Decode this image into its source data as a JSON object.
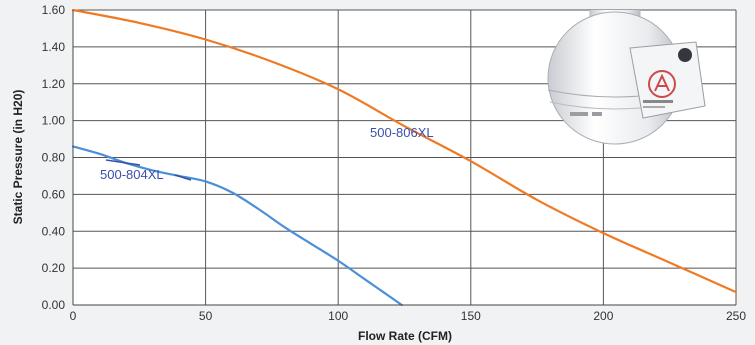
{
  "chart_data": {
    "type": "line",
    "xlabel": "Flow Rate (CFM)",
    "ylabel": "Static Pressure (in H20)",
    "xlim": [
      0,
      250
    ],
    "ylim": [
      0,
      1.6
    ],
    "xticks": [
      0,
      50,
      100,
      150,
      200,
      250
    ],
    "xtick_labels": [
      "0",
      "50",
      "100",
      "150",
      "200",
      "250"
    ],
    "yticks": [
      0,
      0.2,
      0.4,
      0.6,
      0.8,
      1.0,
      1.2,
      1.4,
      1.6
    ],
    "ytick_labels": [
      "0.00",
      "0.20",
      "0.40",
      "0.60",
      "0.80",
      "1.00",
      "1.20",
      "1.40",
      "1.60"
    ],
    "grid": true,
    "series": [
      {
        "name": "500-806XL",
        "color": "#ee7a24",
        "x": [
          0,
          25,
          50,
          75,
          100,
          125,
          150,
          175,
          200,
          225,
          250
        ],
        "y": [
          1.6,
          1.53,
          1.44,
          1.32,
          1.17,
          0.97,
          0.78,
          0.57,
          0.39,
          0.23,
          0.07
        ]
      },
      {
        "name": "500-804XL",
        "color": "#4b8fd8",
        "x": [
          0,
          10,
          20,
          30,
          40,
          50,
          60,
          70,
          80,
          90,
          100,
          110,
          120,
          124
        ],
        "y": [
          0.86,
          0.82,
          0.77,
          0.73,
          0.7,
          0.67,
          0.61,
          0.52,
          0.42,
          0.33,
          0.24,
          0.14,
          0.04,
          0.0
        ]
      }
    ]
  },
  "colors": {
    "plot_background": "#ffffff",
    "grid": "#555555",
    "label_text": "#3a4fa8",
    "leader_line": "#3a4fa8"
  },
  "product_image": "inline-duct-fan-photo"
}
